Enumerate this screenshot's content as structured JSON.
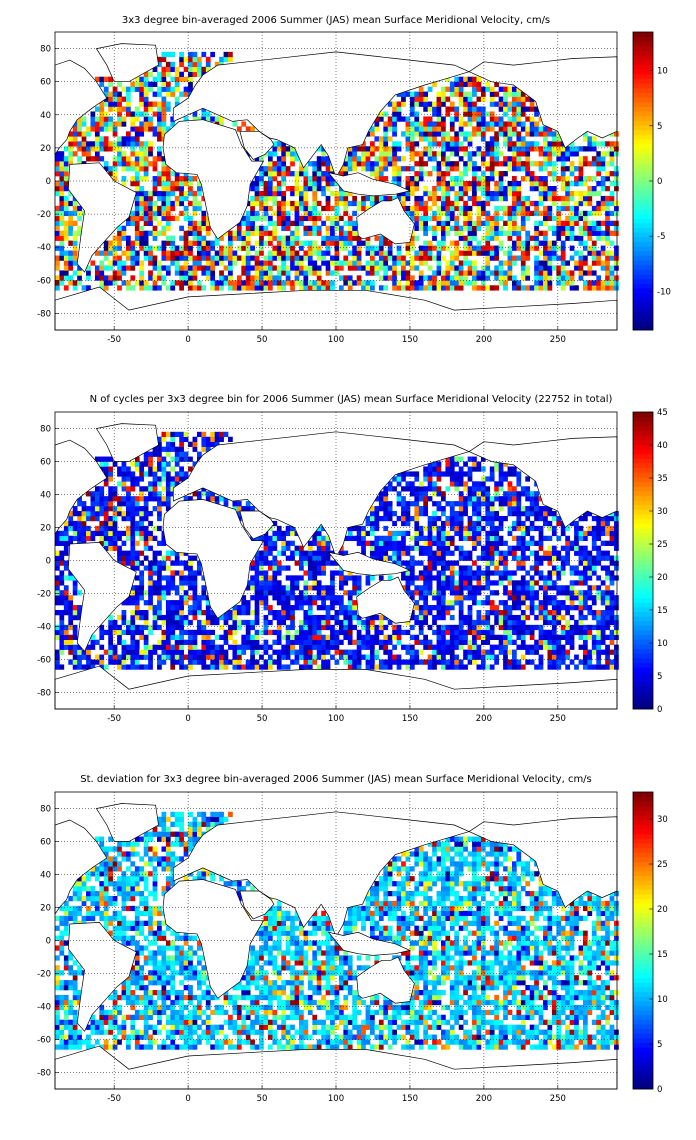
{
  "chart_data": [
    {
      "type": "heatmap",
      "title": "3x3 degree bin-averaged 2006 Summer (JAS) mean Surface Meridional Velocity, cm/s",
      "xlim": [
        -90,
        290
      ],
      "ylim": [
        -90,
        90
      ],
      "xticks": [
        -50,
        0,
        50,
        100,
        150,
        200,
        250
      ],
      "yticks": [
        80,
        60,
        40,
        20,
        0,
        -20,
        -40,
        -60,
        -80
      ],
      "colorbar": {
        "range": [
          -13.5,
          13.5
        ],
        "ticks": [
          10,
          5,
          0,
          -5,
          -10
        ]
      },
      "colormap": "jet",
      "bin_size_deg": 3,
      "lat_range_of_bins": [
        -66,
        78
      ],
      "grid": true
    },
    {
      "type": "heatmap",
      "title": "N of cycles per 3x3 degree bin for 2006 Summer (JAS) mean Surface Meridional Velocity (22752 in total)",
      "xlim": [
        -90,
        290
      ],
      "ylim": [
        -90,
        90
      ],
      "xticks": [
        -50,
        0,
        50,
        100,
        150,
        200,
        250
      ],
      "yticks": [
        80,
        60,
        40,
        20,
        0,
        -20,
        -40,
        -60,
        -80
      ],
      "colorbar": {
        "range": [
          0,
          45
        ],
        "ticks": [
          45,
          40,
          35,
          30,
          25,
          20,
          15,
          10,
          5,
          0
        ]
      },
      "colormap": "jet",
      "bin_size_deg": 3,
      "total_cycles": 22752,
      "grid": true
    },
    {
      "type": "heatmap",
      "title": "St. deviation for 3x3 degree bin-averaged 2006 Summer (JAS) mean Surface Meridional Velocity, cm/s",
      "xlim": [
        -90,
        290
      ],
      "ylim": [
        -90,
        90
      ],
      "xticks": [
        -50,
        0,
        50,
        100,
        150,
        200,
        250
      ],
      "yticks": [
        80,
        60,
        40,
        20,
        0,
        -20,
        -40,
        -60,
        -80
      ],
      "colorbar": {
        "range": [
          0,
          33
        ],
        "ticks": [
          30,
          25,
          20,
          15,
          10,
          5,
          0
        ]
      },
      "colormap": "jet",
      "bin_size_deg": 3,
      "grid": true
    }
  ]
}
